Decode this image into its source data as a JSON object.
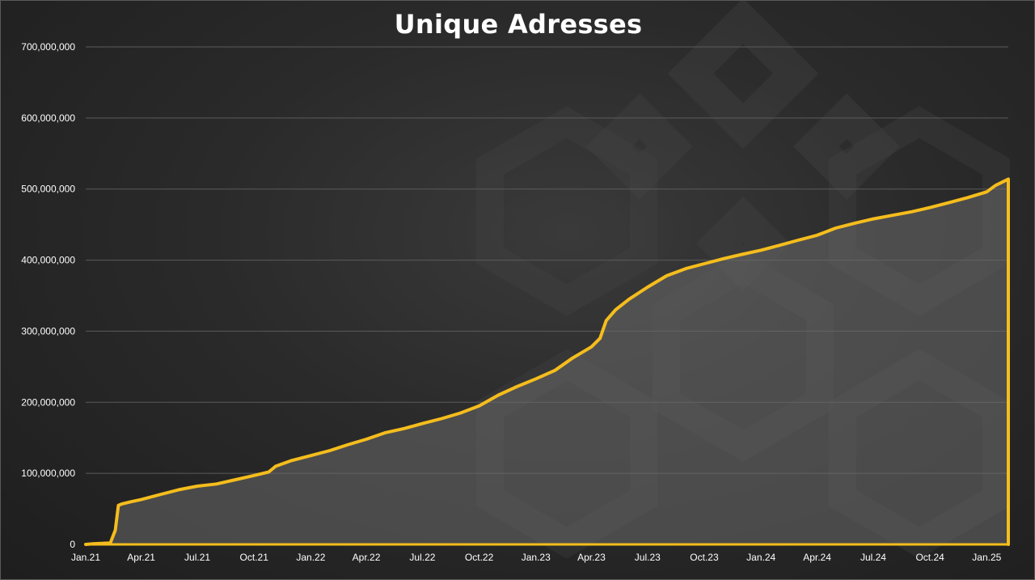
{
  "colors": {
    "line": "#f5bd1d",
    "area": "#6a6a6a",
    "grid": "#5b5b5b",
    "text": "#ffffff",
    "watermark": "#444444"
  },
  "chart_data": {
    "type": "area",
    "title": "Unique Adresses",
    "xlabel": "",
    "ylabel": "",
    "ylim": [
      0,
      700000000
    ],
    "grid": true,
    "legend": "none",
    "y_ticks": [
      0,
      100000000,
      200000000,
      300000000,
      400000000,
      500000000,
      600000000,
      700000000
    ],
    "y_tick_labels": [
      "0",
      "100,000,000",
      "200,000,000",
      "300,000,000",
      "400,000,000",
      "500,000,000",
      "600,000,000",
      "700,000,000"
    ],
    "x_tick_labels": [
      "Jan.21",
      "Apr.21",
      "Jul.21",
      "Oct.21",
      "Jan.22",
      "Apr.22",
      "Jul.22",
      "Oct.22",
      "Jan.23",
      "Apr.23",
      "Jul.23",
      "Oct.23",
      "Jan.24",
      "Apr.24",
      "Jul.24",
      "Oct.24",
      "Jan.25"
    ],
    "series": [
      {
        "x": [
          "2021-01-01",
          "2021-01-15",
          "2021-02-10",
          "2021-02-18",
          "2021-02-23",
          "2021-03-01",
          "2021-03-15",
          "2021-04-01",
          "2021-05-01",
          "2021-06-01",
          "2021-07-01",
          "2021-08-01",
          "2021-09-01",
          "2021-10-01",
          "2021-10-25",
          "2021-11-05",
          "2021-12-01",
          "2022-01-01",
          "2022-02-01",
          "2022-03-01",
          "2022-04-01",
          "2022-05-01",
          "2022-06-01",
          "2022-07-01",
          "2022-08-01",
          "2022-09-01",
          "2022-10-01",
          "2022-11-01",
          "2022-12-01",
          "2023-01-01",
          "2023-02-01",
          "2023-03-01",
          "2023-04-01",
          "2023-04-15",
          "2023-04-25",
          "2023-05-10",
          "2023-06-01",
          "2023-07-01",
          "2023-08-01",
          "2023-09-01",
          "2023-10-01",
          "2023-11-01",
          "2023-12-01",
          "2024-01-01",
          "2024-02-01",
          "2024-03-01",
          "2024-04-01",
          "2024-05-01",
          "2024-06-01",
          "2024-07-01",
          "2024-08-01",
          "2024-09-01",
          "2024-10-01",
          "2024-11-01",
          "2024-12-01",
          "2025-01-01",
          "2025-01-15",
          "2025-02-05"
        ],
        "values": [
          0,
          1000000,
          2000000,
          20000000,
          55000000,
          57000000,
          60000000,
          63000000,
          70000000,
          77000000,
          82000000,
          85000000,
          91000000,
          97000000,
          102000000,
          110000000,
          118000000,
          125000000,
          132000000,
          140000000,
          148000000,
          157000000,
          163000000,
          170000000,
          177000000,
          185000000,
          195000000,
          210000000,
          222000000,
          233000000,
          245000000,
          262000000,
          278000000,
          290000000,
          315000000,
          330000000,
          345000000,
          362000000,
          378000000,
          388000000,
          395000000,
          402000000,
          408000000,
          414000000,
          421000000,
          428000000,
          435000000,
          445000000,
          452000000,
          458000000,
          463000000,
          468000000,
          474000000,
          481000000,
          488000000,
          496000000,
          505000000,
          514000000
        ]
      }
    ]
  }
}
